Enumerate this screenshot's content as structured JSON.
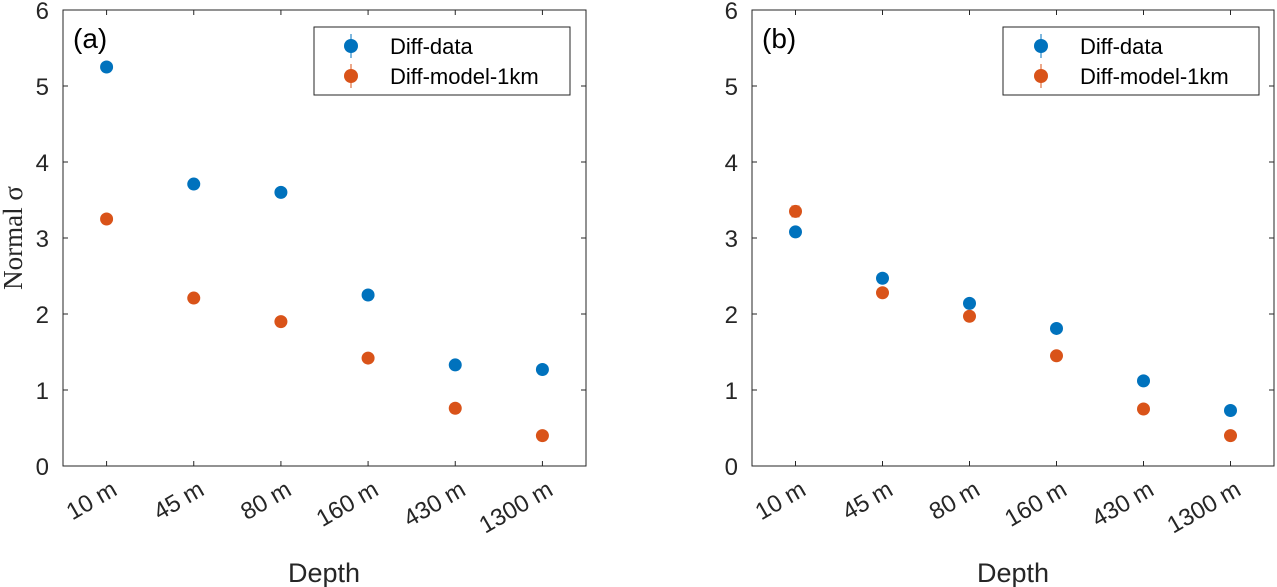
{
  "chart_data": [
    {
      "type": "scatter",
      "panel_label": "(a)",
      "categories": [
        "10 m",
        "45 m",
        "80 m",
        "160 m",
        "430 m",
        "1300 m"
      ],
      "series": [
        {
          "name": "Diff-data",
          "color": "#0072BD",
          "values": [
            5.25,
            3.71,
            3.6,
            2.25,
            1.33,
            1.27
          ],
          "errors": [
            0.04,
            0.03,
            0.03,
            0.03,
            0.03,
            0.03
          ]
        },
        {
          "name": "Diff-model-1km",
          "color": "#D95319",
          "values": [
            3.25,
            2.21,
            1.9,
            1.42,
            0.76,
            0.4
          ],
          "errors": [
            0.04,
            0.03,
            0.03,
            0.03,
            0.03,
            0.03
          ]
        }
      ],
      "xlabel": "Depth",
      "ylabel": "Normal σ",
      "ylim": [
        0,
        6
      ],
      "yticks": [
        "0",
        "1",
        "2",
        "3",
        "4",
        "5",
        "6"
      ],
      "legend_position": "top-right"
    },
    {
      "type": "scatter",
      "panel_label": "(b)",
      "categories": [
        "10 m",
        "45 m",
        "80 m",
        "160 m",
        "430 m",
        "1300 m"
      ],
      "series": [
        {
          "name": "Diff-data",
          "color": "#0072BD",
          "values": [
            3.08,
            2.47,
            2.14,
            1.81,
            1.12,
            0.73
          ],
          "errors": [
            0.06,
            0.04,
            0.03,
            0.03,
            0.03,
            0.03
          ]
        },
        {
          "name": "Diff-model-1km",
          "color": "#D95319",
          "values": [
            3.35,
            2.28,
            1.97,
            1.45,
            0.75,
            0.4
          ],
          "errors": [
            0.07,
            0.04,
            0.03,
            0.03,
            0.03,
            0.03
          ]
        }
      ],
      "xlabel": "Depth",
      "ylabel": "",
      "ylim": [
        0,
        6
      ],
      "yticks": [
        "0",
        "1",
        "2",
        "3",
        "4",
        "5",
        "6"
      ],
      "legend_position": "top-right"
    }
  ]
}
